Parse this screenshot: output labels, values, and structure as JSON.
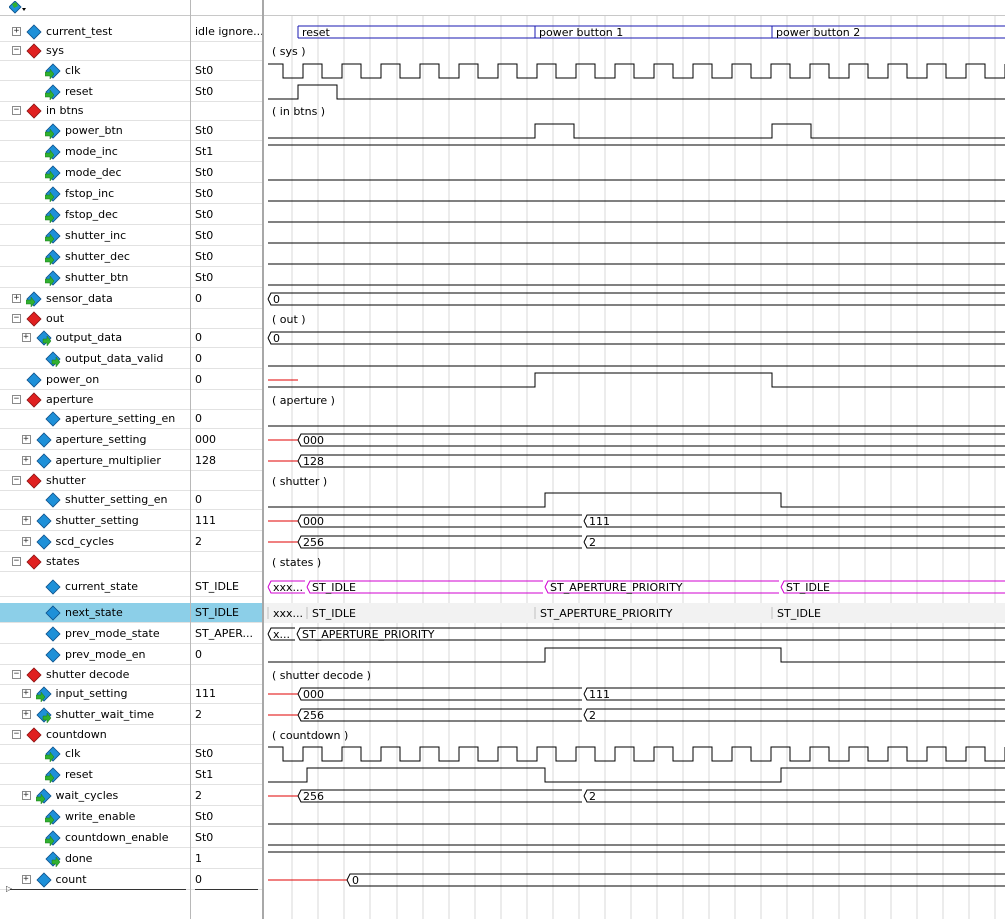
{
  "toolbar": {
    "icon": "wave-menu-icon"
  },
  "colors": {
    "wave": "#000000",
    "bus": "#1a1ab0",
    "states": "#d000d0",
    "undefined": "#e00000",
    "grid": "#d8d8d8",
    "highlight": "#8ccfe8",
    "diamond_blue": "#1e90d8",
    "diamond_red": "#e02020",
    "arrow_green": "#30b030"
  },
  "signals": [
    {
      "name": "current_test",
      "value": "idle ignore...",
      "indent": 0,
      "expander": "+",
      "icon": "blue-diamond",
      "group_label": ""
    },
    {
      "name": "sys",
      "value": "",
      "indent": 0,
      "expander": "-",
      "icon": "red-diamond",
      "group_label": "( sys )"
    },
    {
      "name": "clk",
      "value": "St0",
      "indent": 2,
      "expander": "",
      "icon": "arrow-diamond",
      "group_label": ""
    },
    {
      "name": "reset",
      "value": "St0",
      "indent": 2,
      "expander": "",
      "icon": "arrow-diamond",
      "group_label": ""
    },
    {
      "name": "in btns",
      "value": "",
      "indent": 0,
      "expander": "-",
      "icon": "red-diamond",
      "group_label": "( in btns )"
    },
    {
      "name": "power_btn",
      "value": "St0",
      "indent": 2,
      "expander": "",
      "icon": "arrow-diamond",
      "group_label": ""
    },
    {
      "name": "mode_inc",
      "value": "St1",
      "indent": 2,
      "expander": "",
      "icon": "arrow-diamond",
      "group_label": ""
    },
    {
      "name": "mode_dec",
      "value": "St0",
      "indent": 2,
      "expander": "",
      "icon": "arrow-diamond",
      "group_label": ""
    },
    {
      "name": "fstop_inc",
      "value": "St0",
      "indent": 2,
      "expander": "",
      "icon": "arrow-diamond",
      "group_label": ""
    },
    {
      "name": "fstop_dec",
      "value": "St0",
      "indent": 2,
      "expander": "",
      "icon": "arrow-diamond",
      "group_label": ""
    },
    {
      "name": "shutter_inc",
      "value": "St0",
      "indent": 2,
      "expander": "",
      "icon": "arrow-diamond",
      "group_label": ""
    },
    {
      "name": "shutter_dec",
      "value": "St0",
      "indent": 2,
      "expander": "",
      "icon": "arrow-diamond",
      "group_label": ""
    },
    {
      "name": "shutter_btn",
      "value": "St0",
      "indent": 2,
      "expander": "",
      "icon": "arrow-diamond",
      "group_label": ""
    },
    {
      "name": "sensor_data",
      "value": "0",
      "indent": 0,
      "expander": "+",
      "icon": "arrow-diamond",
      "group_label": ""
    },
    {
      "name": "out",
      "value": "",
      "indent": 0,
      "expander": "-",
      "icon": "red-diamond",
      "group_label": "( out )"
    },
    {
      "name": "output_data",
      "value": "0",
      "indent": 1,
      "expander": "+",
      "icon": "out-diamond",
      "group_label": ""
    },
    {
      "name": "output_data_valid",
      "value": "0",
      "indent": 2,
      "expander": "",
      "icon": "out-diamond",
      "group_label": ""
    },
    {
      "name": "power_on",
      "value": "0",
      "indent": 0,
      "expander": "",
      "icon": "blue-diamond",
      "group_label": ""
    },
    {
      "name": "aperture",
      "value": "",
      "indent": 0,
      "expander": "-",
      "icon": "red-diamond",
      "group_label": "( aperture )"
    },
    {
      "name": "aperture_setting_en",
      "value": "0",
      "indent": 2,
      "expander": "",
      "icon": "blue-diamond",
      "group_label": ""
    },
    {
      "name": "aperture_setting",
      "value": "000",
      "indent": 1,
      "expander": "+",
      "icon": "blue-diamond",
      "group_label": ""
    },
    {
      "name": "aperture_multiplier",
      "value": "128",
      "indent": 1,
      "expander": "+",
      "icon": "blue-diamond",
      "group_label": ""
    },
    {
      "name": "shutter",
      "value": "",
      "indent": 0,
      "expander": "-",
      "icon": "red-diamond",
      "group_label": "( shutter )"
    },
    {
      "name": "shutter_setting_en",
      "value": "0",
      "indent": 2,
      "expander": "",
      "icon": "blue-diamond",
      "group_label": ""
    },
    {
      "name": "shutter_setting",
      "value": "111",
      "indent": 1,
      "expander": "+",
      "icon": "blue-diamond",
      "group_label": ""
    },
    {
      "name": "scd_cycles",
      "value": "2",
      "indent": 1,
      "expander": "+",
      "icon": "blue-diamond",
      "group_label": ""
    },
    {
      "name": "states",
      "value": "",
      "indent": 0,
      "expander": "-",
      "icon": "red-diamond",
      "group_label": "( states )"
    },
    {
      "name": "current_state",
      "value": "ST_IDLE",
      "indent": 2,
      "expander": "",
      "icon": "blue-diamond",
      "group_label": ""
    },
    {
      "name": "next_state",
      "value": "ST_IDLE",
      "indent": 2,
      "expander": "",
      "icon": "blue-diamond",
      "group_label": ""
    },
    {
      "name": "prev_mode_state",
      "value": "ST_APER...",
      "indent": 2,
      "expander": "",
      "icon": "blue-diamond",
      "group_label": ""
    },
    {
      "name": "prev_mode_en",
      "value": "0",
      "indent": 2,
      "expander": "",
      "icon": "blue-diamond",
      "group_label": ""
    },
    {
      "name": "shutter decode",
      "value": "",
      "indent": 0,
      "expander": "-",
      "icon": "red-diamond",
      "group_label": "( shutter decode )"
    },
    {
      "name": "input_setting",
      "value": "111",
      "indent": 1,
      "expander": "+",
      "icon": "arrow-diamond",
      "group_label": ""
    },
    {
      "name": "shutter_wait_time",
      "value": "2",
      "indent": 1,
      "expander": "+",
      "icon": "out-diamond",
      "group_label": ""
    },
    {
      "name": "countdown",
      "value": "",
      "indent": 0,
      "expander": "-",
      "icon": "red-diamond",
      "group_label": "( countdown )"
    },
    {
      "name": "clk",
      "value": "St0",
      "indent": 2,
      "expander": "",
      "icon": "arrow-diamond",
      "group_label": ""
    },
    {
      "name": "reset",
      "value": "St1",
      "indent": 2,
      "expander": "",
      "icon": "arrow-diamond",
      "group_label": ""
    },
    {
      "name": "wait_cycles",
      "value": "2",
      "indent": 1,
      "expander": "+",
      "icon": "arrow-diamond",
      "group_label": ""
    },
    {
      "name": "write_enable",
      "value": "St0",
      "indent": 2,
      "expander": "",
      "icon": "arrow-diamond",
      "group_label": ""
    },
    {
      "name": "countdown_enable",
      "value": "St0",
      "indent": 2,
      "expander": "",
      "icon": "arrow-diamond",
      "group_label": ""
    },
    {
      "name": "done",
      "value": "1",
      "indent": 2,
      "expander": "",
      "icon": "out-diamond",
      "group_label": ""
    },
    {
      "name": "count",
      "value": "0",
      "indent": 1,
      "expander": "+",
      "icon": "blue-diamond",
      "group_label": ""
    }
  ],
  "waves": {
    "current_test": [
      "reset",
      "power button 1",
      "power button 2"
    ],
    "sensor_data": [
      "0"
    ],
    "output_data": [
      "0"
    ],
    "aperture_setting": [
      "000"
    ],
    "aperture_multiplier": [
      "128"
    ],
    "shutter_setting": [
      "000",
      "111"
    ],
    "scd_cycles": [
      "256",
      "2"
    ],
    "current_state": [
      "xxx...",
      "ST_IDLE",
      "ST_APERTURE_PRIORITY",
      "ST_IDLE"
    ],
    "next_state": [
      "xxx...",
      "ST_IDLE",
      "ST_APERTURE_PRIORITY",
      "ST_IDLE"
    ],
    "prev_mode_state": [
      "x...",
      "ST_APERTURE_PRIORITY"
    ],
    "input_setting": [
      "000",
      "111"
    ],
    "shutter_wait_time": [
      "256",
      "2"
    ],
    "wait_cycles": [
      "256",
      "2"
    ],
    "count": [
      "0"
    ]
  },
  "selected_row": "next_state"
}
